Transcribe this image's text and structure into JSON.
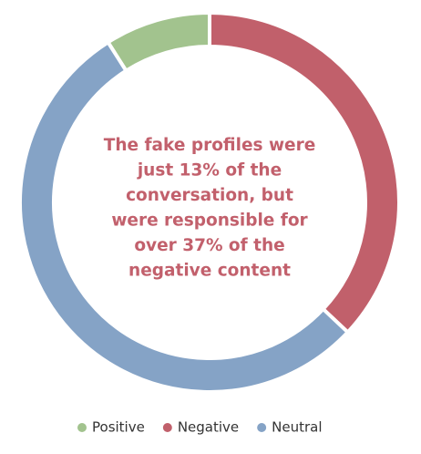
{
  "chart_data": {
    "type": "donut",
    "annotation_lines": [
      "The fake profiles were",
      "just 13% of the",
      "conversation, but",
      "were responsible for",
      "over 37% of the",
      "negative content"
    ],
    "categories": [
      "Positive",
      "Negative",
      "Neutral"
    ],
    "values": [
      9,
      37,
      54
    ],
    "colors": [
      "#a2c38e",
      "#c1606b",
      "#85a3c6"
    ],
    "legend": "bottom"
  }
}
